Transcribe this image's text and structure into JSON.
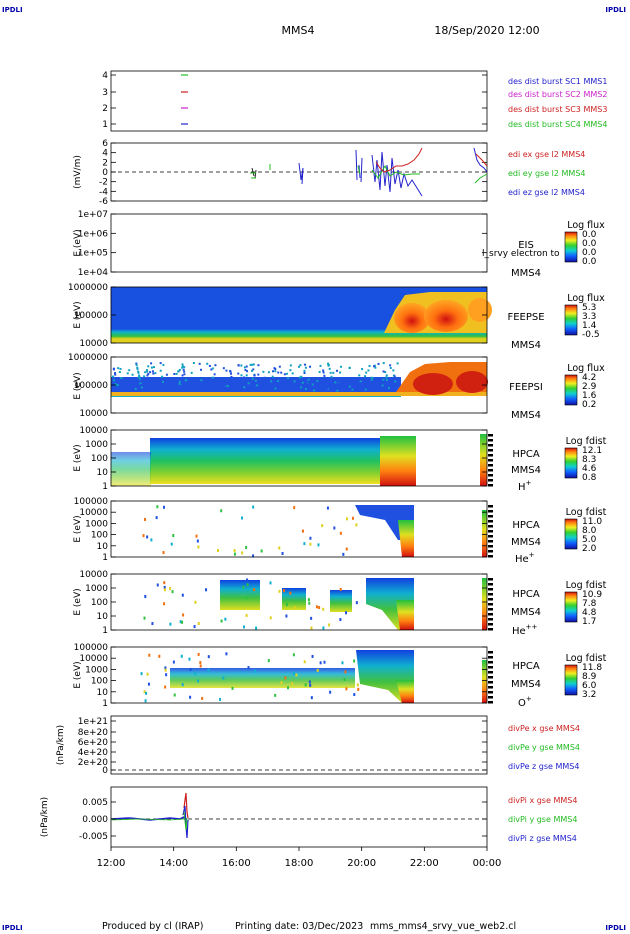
{
  "page": {
    "corner_tl": "IPDLI",
    "corner_tr": "IPDLI",
    "corner_bl": "IPDLI",
    "corner_br": "IPDLI",
    "spacecraft": "MMS4",
    "datetime": "18/Sep/2020 12:00",
    "footer_producer": "Produced by cl (IRAP)",
    "footer_date": "Printing date: 03/Dec/2023",
    "footer_file": "mms_mms4_srvy_vue_web2.cl"
  },
  "chart_data": [
    {
      "type": "line",
      "id": "burst",
      "ticks": [
        "4",
        "3",
        "2",
        "1"
      ],
      "legend": [
        {
          "name": "des dist burst SC1 MMS1",
          "color": "#2222cc"
        },
        {
          "name": "des dist burst SC2 MMS2",
          "color": "#cc22cc"
        },
        {
          "name": "des dist burst SC3 MMS3",
          "color": "#cc2222"
        },
        {
          "name": "des dist burst SC4 MMS4",
          "color": "#22bb22"
        }
      ]
    },
    {
      "type": "line",
      "id": "edi",
      "ylabel": "(mV/m)",
      "ticks": [
        "6",
        "4",
        "2",
        "0",
        "-2",
        "-4",
        "-6"
      ],
      "legend": [
        {
          "name": "edi ex gse l2 MMS4",
          "color": "#cc2222"
        },
        {
          "name": "edi ey gse l2 MMS4",
          "color": "#22bb22"
        },
        {
          "name": "edi ez gse l2 MMS4",
          "color": "#2222cc"
        }
      ]
    },
    {
      "type": "heatmap",
      "id": "eis",
      "ylabel": "E (eV)",
      "ticks": [
        "1e+07",
        "1e+06",
        "1e+05",
        "1e+04"
      ],
      "name": "EIS",
      "overlap_text": "l_srvy electron to",
      "sc": "MMS4",
      "cbar_title": "Log flux",
      "cbar_ticks": [
        "0.0",
        "0.0",
        "0.0",
        "0.0"
      ]
    },
    {
      "type": "heatmap",
      "id": "feepse",
      "ylabel": "E (eV)",
      "ticks": [
        "1000000",
        "100000",
        "10000"
      ],
      "name": "FEEPSE",
      "sc": "MMS4",
      "cbar_title": "Log flux",
      "cbar_ticks": [
        "5.3",
        "3.3",
        "1.4",
        "-0.5"
      ]
    },
    {
      "type": "heatmap",
      "id": "feepsi",
      "ylabel": "E (eV)",
      "ticks": [
        "1000000",
        "100000",
        "10000"
      ],
      "name": "FEEPSI",
      "sc": "MMS4",
      "cbar_title": "Log flux",
      "cbar_ticks": [
        "4.2",
        "2.9",
        "1.6",
        "0.2"
      ]
    },
    {
      "type": "heatmap",
      "id": "hpca_h",
      "ylabel": "E (eV)",
      "ticks": [
        "10000",
        "1000",
        "100",
        "10",
        "1"
      ],
      "name": "HPCA",
      "sc": "MMS4",
      "species": "H",
      "charge": "+",
      "cbar_title": "Log fdist",
      "cbar_ticks": [
        "12.1",
        "8.3",
        "4.6",
        "0.8"
      ]
    },
    {
      "type": "heatmap",
      "id": "hpca_he",
      "ylabel": "E (eV)",
      "ticks": [
        "100000",
        "10000",
        "1000",
        "100",
        "10",
        "1"
      ],
      "name": "HPCA",
      "sc": "MMS4",
      "species": "He",
      "charge": "+",
      "cbar_title": "Log fdist",
      "cbar_ticks": [
        "11.0",
        "8.0",
        "5.0",
        "2.0"
      ]
    },
    {
      "type": "heatmap",
      "id": "hpca_he2",
      "ylabel": "E (eV)",
      "ticks": [
        "10000",
        "1000",
        "100",
        "10",
        "1"
      ],
      "name": "HPCA",
      "sc": "MMS4",
      "species": "He",
      "charge": "++",
      "cbar_title": "Log fdist",
      "cbar_ticks": [
        "10.9",
        "7.8",
        "4.8",
        "1.7"
      ]
    },
    {
      "type": "heatmap",
      "id": "hpca_o",
      "ylabel": "E (eV)",
      "ticks": [
        "100000",
        "10000",
        "1000",
        "100",
        "10",
        "1"
      ],
      "name": "HPCA",
      "sc": "MMS4",
      "species": "O",
      "charge": "+",
      "cbar_title": "Log fdist",
      "cbar_ticks": [
        "11.8",
        "8.9",
        "6.0",
        "3.2"
      ]
    },
    {
      "type": "line",
      "id": "divpe",
      "ylabel": "(nPa/km)",
      "ticks": [
        "1e+21",
        "8e+20",
        "6e+20",
        "4e+20",
        "2e+20",
        "0"
      ],
      "legend": [
        {
          "name": "divPe x gse MMS4",
          "color": "#cc2222"
        },
        {
          "name": "divPe y gse MMS4",
          "color": "#22bb22"
        },
        {
          "name": "divPe z gse MMS4",
          "color": "#2222cc"
        }
      ]
    },
    {
      "type": "line",
      "id": "divpi",
      "ylabel": "(nPa/km)",
      "ticks": [
        "0.005",
        "0.000",
        "-0.005"
      ],
      "legend": [
        {
          "name": "divPi x gse MMS4",
          "color": "#cc2222"
        },
        {
          "name": "divPi y gse MMS4",
          "color": "#22bb22"
        },
        {
          "name": "divPi z gse MMS4",
          "color": "#2222cc"
        }
      ],
      "x_ticks": [
        "12:00",
        "14:00",
        "16:00",
        "18:00",
        "20:00",
        "22:00",
        "00:00"
      ]
    }
  ]
}
